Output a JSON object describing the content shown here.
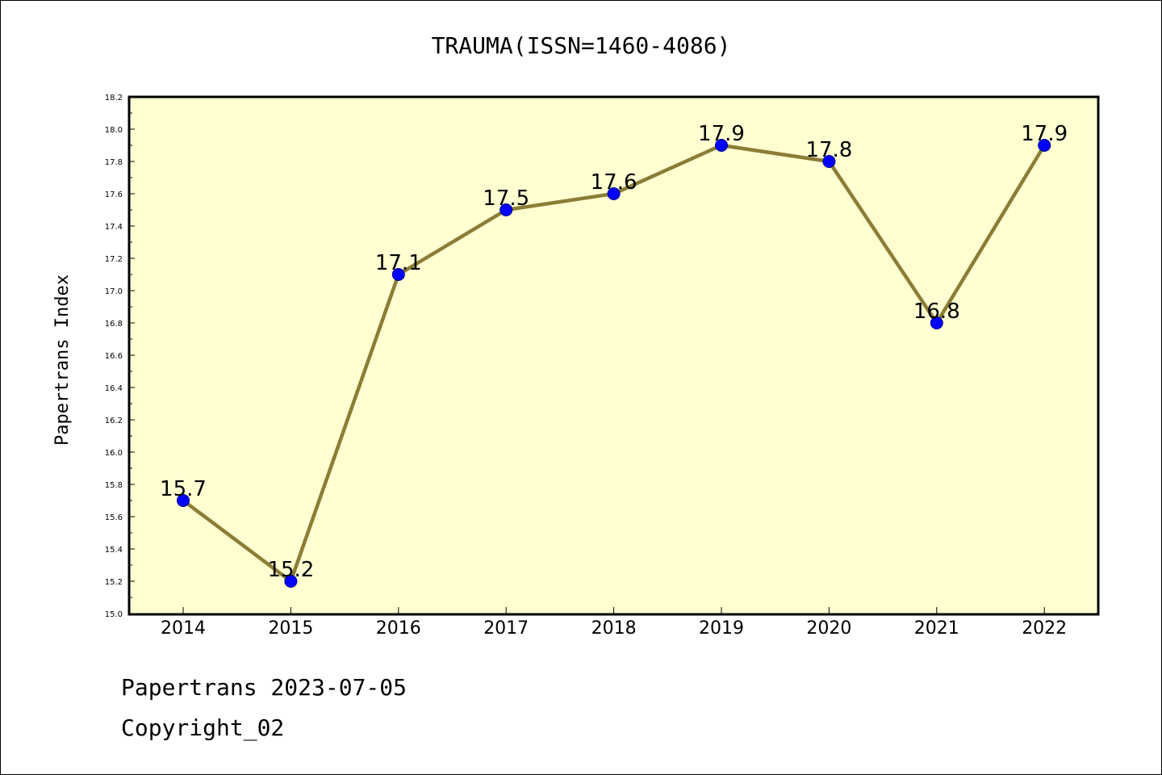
{
  "colors": {
    "plot_background": "#FFFFD2",
    "line": "#8B7D36",
    "marker_fill": "#0000FF",
    "marker_edge": "#00008B",
    "axis": "#000000"
  },
  "chart_data": {
    "type": "line",
    "title": "TRAUMA(ISSN=1460-4086)",
    "xlabel": "",
    "ylabel": "Papertrans Index",
    "categories": [
      "2014",
      "2015",
      "2016",
      "2017",
      "2018",
      "2019",
      "2020",
      "2021",
      "2022"
    ],
    "values": [
      15.7,
      15.2,
      17.1,
      17.5,
      17.6,
      17.9,
      17.8,
      16.8,
      17.9
    ],
    "data_labels": [
      "15.7",
      "15.2",
      "17.1",
      "17.5",
      "17.6",
      "17.9",
      "17.8",
      "16.8",
      "17.9"
    ],
    "ylim": [
      15.0,
      18.2
    ],
    "yticks": [
      "15.0",
      "15.2",
      "15.4",
      "15.6",
      "15.8",
      "16.0",
      "16.2",
      "16.4",
      "16.6",
      "16.8",
      "17.0",
      "17.2",
      "17.4",
      "17.6",
      "17.8",
      "18.0",
      "18.2"
    ],
    "grid": false,
    "legend": "none"
  },
  "footer": {
    "line1": "Papertrans 2023-07-05",
    "line2": "Copyright_02"
  }
}
